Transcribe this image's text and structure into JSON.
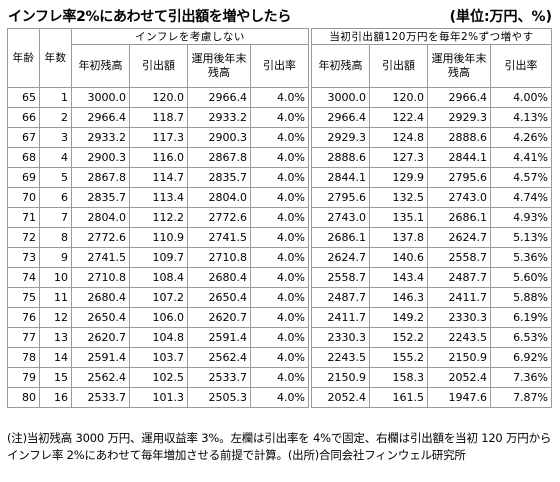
{
  "title": "インフレ率2%にあわせて引出額を増やしたら",
  "unit": "(単位:万円、%)",
  "header": {
    "age": "年齢",
    "years": "年数",
    "left_group": "インフレを考慮しない",
    "right_group": "当初引出額120万円を毎年2%ずつ増やす",
    "cols": [
      "年初残高",
      "引出額",
      "運用後年末残高",
      "引出率"
    ]
  },
  "rows": [
    {
      "age": "65",
      "year": "1",
      "l_start": "3000.0",
      "l_draw": "120.0",
      "l_end": "2966.4",
      "l_rate": "4.0%",
      "r_start": "3000.0",
      "r_draw": "120.0",
      "r_end": "2966.4",
      "r_rate": "4.00%"
    },
    {
      "age": "66",
      "year": "2",
      "l_start": "2966.4",
      "l_draw": "118.7",
      "l_end": "2933.2",
      "l_rate": "4.0%",
      "r_start": "2966.4",
      "r_draw": "122.4",
      "r_end": "2929.3",
      "r_rate": "4.13%"
    },
    {
      "age": "67",
      "year": "3",
      "l_start": "2933.2",
      "l_draw": "117.3",
      "l_end": "2900.3",
      "l_rate": "4.0%",
      "r_start": "2929.3",
      "r_draw": "124.8",
      "r_end": "2888.6",
      "r_rate": "4.26%"
    },
    {
      "age": "68",
      "year": "4",
      "l_start": "2900.3",
      "l_draw": "116.0",
      "l_end": "2867.8",
      "l_rate": "4.0%",
      "r_start": "2888.6",
      "r_draw": "127.3",
      "r_end": "2844.1",
      "r_rate": "4.41%"
    },
    {
      "age": "69",
      "year": "5",
      "l_start": "2867.8",
      "l_draw": "114.7",
      "l_end": "2835.7",
      "l_rate": "4.0%",
      "r_start": "2844.1",
      "r_draw": "129.9",
      "r_end": "2795.6",
      "r_rate": "4.57%"
    },
    {
      "age": "70",
      "year": "6",
      "l_start": "2835.7",
      "l_draw": "113.4",
      "l_end": "2804.0",
      "l_rate": "4.0%",
      "r_start": "2795.6",
      "r_draw": "132.5",
      "r_end": "2743.0",
      "r_rate": "4.74%"
    },
    {
      "age": "71",
      "year": "7",
      "l_start": "2804.0",
      "l_draw": "112.2",
      "l_end": "2772.6",
      "l_rate": "4.0%",
      "r_start": "2743.0",
      "r_draw": "135.1",
      "r_end": "2686.1",
      "r_rate": "4.93%"
    },
    {
      "age": "72",
      "year": "8",
      "l_start": "2772.6",
      "l_draw": "110.9",
      "l_end": "2741.5",
      "l_rate": "4.0%",
      "r_start": "2686.1",
      "r_draw": "137.8",
      "r_end": "2624.7",
      "r_rate": "5.13%"
    },
    {
      "age": "73",
      "year": "9",
      "l_start": "2741.5",
      "l_draw": "109.7",
      "l_end": "2710.8",
      "l_rate": "4.0%",
      "r_start": "2624.7",
      "r_draw": "140.6",
      "r_end": "2558.7",
      "r_rate": "5.36%"
    },
    {
      "age": "74",
      "year": "10",
      "l_start": "2710.8",
      "l_draw": "108.4",
      "l_end": "2680.4",
      "l_rate": "4.0%",
      "r_start": "2558.7",
      "r_draw": "143.4",
      "r_end": "2487.7",
      "r_rate": "5.60%"
    },
    {
      "age": "75",
      "year": "11",
      "l_start": "2680.4",
      "l_draw": "107.2",
      "l_end": "2650.4",
      "l_rate": "4.0%",
      "r_start": "2487.7",
      "r_draw": "146.3",
      "r_end": "2411.7",
      "r_rate": "5.88%"
    },
    {
      "age": "76",
      "year": "12",
      "l_start": "2650.4",
      "l_draw": "106.0",
      "l_end": "2620.7",
      "l_rate": "4.0%",
      "r_start": "2411.7",
      "r_draw": "149.2",
      "r_end": "2330.3",
      "r_rate": "6.19%"
    },
    {
      "age": "77",
      "year": "13",
      "l_start": "2620.7",
      "l_draw": "104.8",
      "l_end": "2591.4",
      "l_rate": "4.0%",
      "r_start": "2330.3",
      "r_draw": "152.2",
      "r_end": "2243.5",
      "r_rate": "6.53%"
    },
    {
      "age": "78",
      "year": "14",
      "l_start": "2591.4",
      "l_draw": "103.7",
      "l_end": "2562.4",
      "l_rate": "4.0%",
      "r_start": "2243.5",
      "r_draw": "155.2",
      "r_end": "2150.9",
      "r_rate": "6.92%"
    },
    {
      "age": "79",
      "year": "15",
      "l_start": "2562.4",
      "l_draw": "102.5",
      "l_end": "2533.7",
      "l_rate": "4.0%",
      "r_start": "2150.9",
      "r_draw": "158.3",
      "r_end": "2052.4",
      "r_rate": "7.36%"
    },
    {
      "age": "80",
      "year": "16",
      "l_start": "2533.7",
      "l_draw": "101.3",
      "l_end": "2505.3",
      "l_rate": "4.0%",
      "r_start": "2052.4",
      "r_draw": "161.5",
      "r_end": "1947.6",
      "r_rate": "7.87%"
    }
  ],
  "note": "(注)当初残高 3000 万円、運用収益率 3%。左欄は引出率を 4%で固定、右欄は引出額を当初 120 万円からインフレ率 2%にあわせて毎年増加させる前提で計算。(出所)合同会社フィンウェル研究所"
}
